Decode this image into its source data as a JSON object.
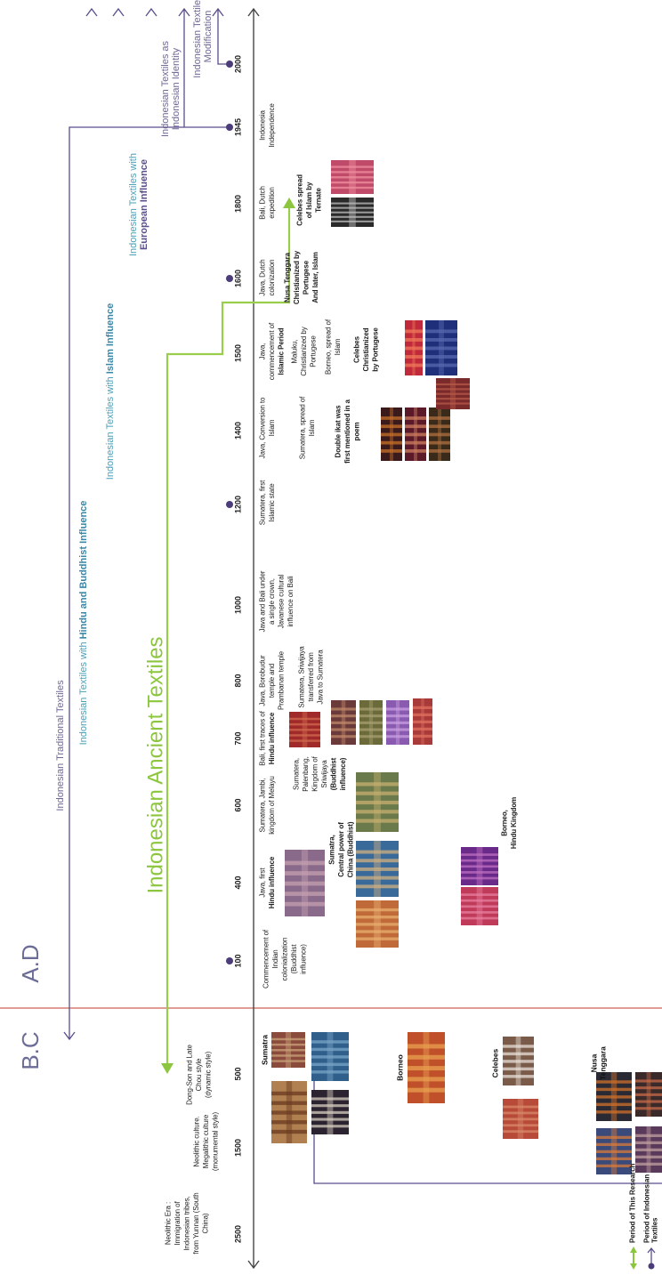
{
  "era_labels": {
    "bc": "B.C",
    "ad": "A.D"
  },
  "title": "Indonesian Ancient Textiles",
  "years": [
    "2500",
    "1500",
    "500",
    "100",
    "400",
    "600",
    "700",
    "800",
    "1000",
    "1200",
    "1400",
    "1500",
    "1600",
    "1800",
    "1945",
    "2000"
  ],
  "periods": [
    {
      "lines": [
        "Indonesian Traditional Textiles"
      ]
    },
    {
      "lines": [
        "Indonesian Textiles with"
      ],
      "emphasis": [
        "Hindu and Buddhist Influence"
      ]
    },
    {
      "lines": [
        "Indonesian Textiles with"
      ],
      "emphasis": [
        "Islam Influence"
      ]
    },
    {
      "lines": [
        "Indonesian Textiles with"
      ],
      "emphasis": [
        "European Influence"
      ]
    },
    {
      "lines": [
        "Indonesian Textiles as",
        "Indonesian Identity"
      ]
    },
    {
      "lines": [
        "Indonesian Textiles",
        "Modification"
      ]
    }
  ],
  "events": [
    {
      "lines": [
        "Neolithic Era :",
        "Immigration of",
        "Indonesian tribes,",
        "from Yunnan (South",
        "China)"
      ]
    },
    {
      "lines": [
        "Neolithic culture.",
        "Megalithic culture",
        "(monumental style)"
      ]
    },
    {
      "lines": [
        "Dong-Son and Late",
        "Chou style",
        "(dynamic style)"
      ]
    },
    {
      "lines": [
        "Commencement of",
        "Indian",
        "colonialization",
        "(Buddhist",
        "influence)"
      ]
    },
    {
      "lines": [
        "Java, first"
      ],
      "emphasis": [
        "Hindu influence"
      ]
    },
    {
      "emphasis": [
        "Sumatra,",
        "Central power of",
        "China (Buddhist)"
      ]
    },
    {
      "emphasis": [
        "Borneo,",
        "Hindu Kingdom"
      ]
    },
    {
      "lines": [
        "Sumatera, Jambi,",
        "kingdom of Melayu"
      ]
    },
    {
      "lines": [
        "Sumatera,",
        "Palenbang,",
        "Kingdom of",
        "Sriwijaya"
      ],
      "emphasis": [
        "(Buddhist",
        "influence)"
      ]
    },
    {
      "lines": [
        "Bali, first traces of"
      ],
      "emphasis": [
        "Hindu influence"
      ]
    },
    {
      "lines": [
        "Java, Borobudur",
        "temple and",
        "Prambanan temple"
      ]
    },
    {
      "lines": [
        "Sumatera, Sriwijaya",
        "transferred from",
        "Java to Sumatera"
      ]
    },
    {
      "lines": [
        "Java and Bali under",
        "a single crown,",
        "Javanese cultural",
        "influence on Bali"
      ]
    },
    {
      "lines": [
        "Sumatera, first",
        "Islamic state"
      ]
    },
    {
      "lines": [
        "Java, Conversion to",
        "Islam"
      ]
    },
    {
      "lines": [
        "Sumatera, spread of",
        "Islam"
      ]
    },
    {
      "emphasis": [
        "Double ikat was",
        "first mentioned in a",
        "poem"
      ]
    },
    {
      "lines": [
        "Java,",
        "commencement of"
      ],
      "emphasis": [
        "Islamic Period"
      ]
    },
    {
      "lines": [
        "Maluku,",
        "Christianized by",
        "Portugese"
      ]
    },
    {
      "lines": [
        "Borneo, spread of",
        "Islam"
      ]
    },
    {
      "emphasis": [
        "Celebes",
        "Christianized",
        "by Portugese"
      ]
    },
    {
      "lines": [
        "Java, Dutch",
        "colonization"
      ]
    },
    {
      "emphasis": [
        "Nusa Tenggara",
        "Christianized by",
        "Portugese",
        "And later, Islam"
      ]
    },
    {
      "lines": [
        "Bali, Dutch",
        "expedition"
      ]
    },
    {
      "emphasis": [
        "Celebes  spread",
        "of Islam by",
        "Ternate"
      ]
    },
    {
      "lines": [
        "Indonesia",
        "Independence"
      ]
    }
  ],
  "regions": [
    [
      "Sumatra"
    ],
    [
      "Borneo"
    ],
    [
      "Celebes"
    ],
    [
      "Nusa",
      "Tenggara"
    ]
  ],
  "legend": [
    [
      "Period of This Research"
    ],
    [
      "Period of Indonesian",
      "Textiles"
    ]
  ]
}
